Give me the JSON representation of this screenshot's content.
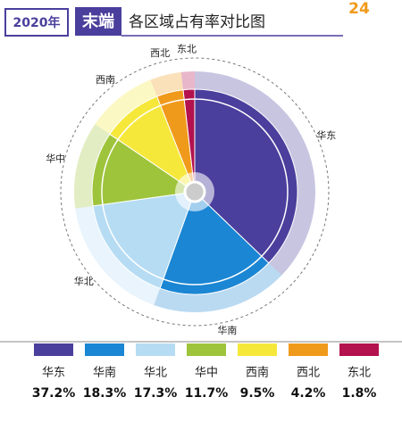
{
  "header": {
    "year": "2020年",
    "tag": "末端",
    "title": "各区域占有率对比图",
    "page": "24"
  },
  "chart_data": {
    "type": "pie",
    "categories": [
      "华东",
      "华南",
      "华北",
      "华中",
      "西南",
      "西北",
      "东北"
    ],
    "values": [
      37.2,
      18.3,
      17.3,
      11.7,
      9.5,
      4.2,
      1.8
    ],
    "value_labels": [
      "37.2%",
      "18.3%",
      "17.3%",
      "11.7%",
      "9.5%",
      "4.2%",
      "1.8%"
    ],
    "colors": [
      "#4a3f9c",
      "#1b86d4",
      "#b6dcf4",
      "#9ec43b",
      "#f6e83b",
      "#f09a1c",
      "#b3124e"
    ]
  }
}
